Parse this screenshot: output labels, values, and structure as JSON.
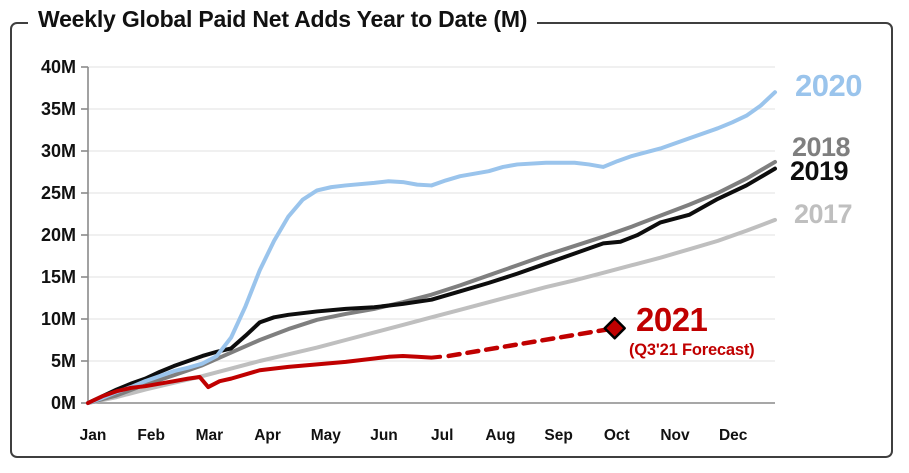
{
  "title": "Weekly Global Paid Net Adds Year to Date (M)",
  "colors": {
    "c2017": "#BFBFBF",
    "c2018": "#7F7F7F",
    "c2019": "#0D0D0D",
    "c2020": "#9AC4EC",
    "c2021": "#C00000",
    "gridline": "#E7E7E7",
    "axis": "#8A8A8A",
    "frame": "#3F3F3F",
    "diamond_outline": "#000000"
  },
  "chart_data": {
    "type": "line",
    "title": "Weekly Global Paid Net Adds Year to Date (M)",
    "xlabel": "",
    "ylabel": "",
    "ylim": [
      0,
      40
    ],
    "grid": "horizontal",
    "legend_position": "right-edge-inline-labels",
    "x_unit": "months since Jan 1 (0 = Jan 1, 12 = Dec 31)",
    "y_ticks": [
      "0M",
      "5M",
      "10M",
      "15M",
      "20M",
      "25M",
      "30M",
      "35M",
      "40M"
    ],
    "x_categories": [
      "Jan",
      "Feb",
      "Mar",
      "Apr",
      "May",
      "Jun",
      "Jul",
      "Aug",
      "Sep",
      "Oct",
      "Nov",
      "Dec"
    ],
    "forecast_note": "(Q3'21 Forecast)",
    "series": [
      {
        "name": "2017",
        "color": "#BFBFBF",
        "style": "solid",
        "x": [
          0,
          0.5,
          1,
          1.5,
          2,
          2.5,
          3,
          3.5,
          4,
          4.5,
          5,
          5.5,
          6,
          6.5,
          7,
          7.5,
          8,
          8.5,
          9,
          9.5,
          10,
          10.5,
          11,
          11.5,
          12
        ],
        "values": [
          0,
          0.7,
          1.6,
          2.4,
          3.2,
          4.1,
          5.0,
          5.8,
          6.6,
          7.5,
          8.4,
          9.3,
          10.2,
          11.1,
          12.0,
          12.9,
          13.8,
          14.6,
          15.5,
          16.4,
          17.3,
          18.3,
          19.3,
          20.5,
          21.8
        ]
      },
      {
        "name": "2018",
        "color": "#7F7F7F",
        "style": "solid",
        "x": [
          0,
          0.5,
          1,
          1.5,
          2,
          2.5,
          3,
          3.5,
          4,
          4.5,
          5,
          5.5,
          6,
          6.5,
          7,
          7.5,
          8,
          8.5,
          9,
          9.5,
          10,
          10.5,
          11,
          11.5,
          12
        ],
        "values": [
          0,
          0.9,
          2.2,
          3.3,
          4.5,
          6.0,
          7.5,
          8.8,
          9.9,
          10.6,
          11.2,
          12.0,
          12.9,
          14.0,
          15.2,
          16.4,
          17.6,
          18.7,
          19.8,
          21.0,
          22.3,
          23.6,
          25.0,
          26.7,
          28.7
        ]
      },
      {
        "name": "2019",
        "color": "#0D0D0D",
        "style": "solid",
        "x": [
          0,
          0.25,
          0.5,
          0.75,
          1,
          1.25,
          1.5,
          1.75,
          2,
          2.25,
          2.5,
          2.75,
          3,
          3.25,
          3.5,
          4,
          4.5,
          5,
          5.5,
          6,
          6.5,
          7,
          7.5,
          8,
          8.5,
          9,
          9.3,
          9.6,
          10,
          10.5,
          11,
          11.5,
          12
        ],
        "values": [
          0,
          0.8,
          1.6,
          2.3,
          2.9,
          3.7,
          4.4,
          5.0,
          5.6,
          6.1,
          6.5,
          8.0,
          9.6,
          10.2,
          10.5,
          10.9,
          11.2,
          11.4,
          11.8,
          12.3,
          13.3,
          14.3,
          15.4,
          16.6,
          17.8,
          19.0,
          19.2,
          20.0,
          21.5,
          22.4,
          24.3,
          25.9,
          27.9
        ]
      },
      {
        "name": "2020",
        "color": "#9AC4EC",
        "style": "solid",
        "x": [
          0,
          0.25,
          0.5,
          0.75,
          1,
          1.25,
          1.5,
          1.75,
          2,
          2.25,
          2.5,
          2.75,
          3,
          3.25,
          3.5,
          3.75,
          4,
          4.25,
          4.5,
          5,
          5.25,
          5.5,
          5.75,
          6,
          6.25,
          6.5,
          6.75,
          7,
          7.25,
          7.5,
          8,
          8.5,
          8.75,
          9,
          9.25,
          9.5,
          10,
          10.5,
          11,
          11.25,
          11.5,
          11.75,
          12
        ],
        "values": [
          0,
          0.6,
          1.3,
          1.9,
          2.6,
          3.2,
          3.8,
          4.2,
          4.7,
          5.6,
          7.8,
          11.5,
          15.8,
          19.3,
          22.2,
          24.2,
          25.3,
          25.7,
          25.9,
          26.2,
          26.4,
          26.3,
          26.0,
          25.9,
          26.5,
          27.0,
          27.3,
          27.6,
          28.1,
          28.4,
          28.6,
          28.6,
          28.4,
          28.1,
          28.8,
          29.4,
          30.3,
          31.5,
          32.7,
          33.4,
          34.2,
          35.4,
          37.0
        ]
      },
      {
        "name": "2021",
        "color": "#C00000",
        "style": "solid",
        "x": [
          0,
          0.25,
          0.5,
          0.75,
          1,
          1.25,
          1.5,
          1.75,
          1.95,
          2.1,
          2.3,
          2.5,
          2.75,
          3,
          3.5,
          4,
          4.5,
          5,
          5.25,
          5.5,
          5.75,
          6,
          6.15
        ],
        "values": [
          0,
          0.8,
          1.4,
          1.8,
          2.0,
          2.3,
          2.6,
          2.9,
          3.1,
          1.9,
          2.6,
          2.9,
          3.4,
          3.9,
          4.3,
          4.6,
          4.9,
          5.3,
          5.5,
          5.6,
          5.5,
          5.4,
          5.5
        ]
      },
      {
        "name": "2021 forecast",
        "color": "#C00000",
        "style": "dashed",
        "x": [
          6.3,
          9.2
        ],
        "values": [
          5.6,
          8.9
        ],
        "marker": {
          "shape": "diamond",
          "x": 9.2,
          "value": 8.9
        }
      }
    ]
  }
}
